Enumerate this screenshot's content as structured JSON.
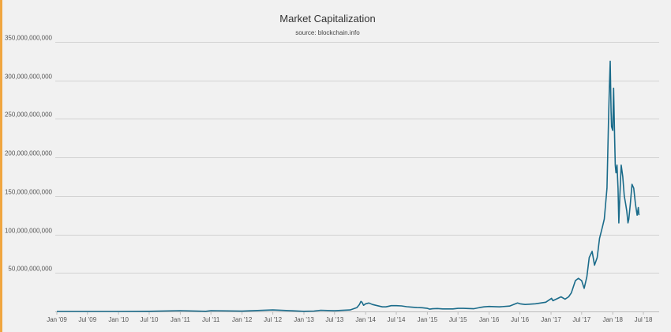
{
  "chart_data": {
    "type": "line",
    "title": "Market Capitalization",
    "subtitle": "source: blockchain.info",
    "xlabel": "",
    "ylabel": "",
    "x_range": [
      "2009-01-01",
      "2018-07-01"
    ],
    "ylim": [
      0,
      350000000000
    ],
    "y_ticks": [
      50000000000,
      100000000000,
      150000000000,
      200000000000,
      250000000000,
      300000000000,
      350000000000
    ],
    "y_tick_labels": [
      "50,000,000,000",
      "100,000,000,000",
      "150,000,000,000",
      "200,000,000,000",
      "250,000,000,000",
      "300,000,000,000",
      "350,000,000,000"
    ],
    "x_tick_labels": [
      "Jan '09",
      "Jul '09",
      "Jan '10",
      "Jul '10",
      "Jan '11",
      "Jul '11",
      "Jan '12",
      "Jul '12",
      "Jan '13",
      "Jul '13",
      "Jan '14",
      "Jul '14",
      "Jan '15",
      "Jul '15",
      "Jan '16",
      "Jul '16",
      "Jan '17",
      "Jul '17",
      "Jan '18",
      "Jul '18"
    ],
    "grid": true,
    "legend": "none",
    "line_color": "#1a6b8a",
    "accent_color": "#f0a640",
    "series": [
      {
        "x": [
          "2009-01-01",
          "2010-01-01",
          "2010-07-01",
          "2011-01-01",
          "2011-06-01",
          "2011-07-01",
          "2012-01-01",
          "2012-07-01",
          "2013-01-01",
          "2013-03-01",
          "2013-04-10",
          "2013-07-01",
          "2013-10-01",
          "2013-11-10",
          "2013-11-25",
          "2013-12-04",
          "2013-12-10",
          "2013-12-20",
          "2014-01-01",
          "2014-01-20",
          "2014-02-10",
          "2014-03-01",
          "2014-04-10",
          "2014-05-01",
          "2014-06-01",
          "2014-07-01",
          "2014-08-01",
          "2014-09-01",
          "2014-10-01",
          "2014-11-01",
          "2014-12-01",
          "2015-01-01",
          "2015-01-15",
          "2015-02-01",
          "2015-03-01",
          "2015-04-01",
          "2015-06-01",
          "2015-07-01",
          "2015-08-01",
          "2015-10-01",
          "2015-11-05",
          "2015-12-01",
          "2016-01-01",
          "2016-03-01",
          "2016-05-01",
          "2016-06-17",
          "2016-07-01",
          "2016-08-01",
          "2016-10-01",
          "2016-12-01",
          "2017-01-04",
          "2017-01-12",
          "2017-02-01",
          "2017-03-01",
          "2017-03-25",
          "2017-04-15",
          "2017-05-01",
          "2017-05-25",
          "2017-06-12",
          "2017-07-01",
          "2017-07-16",
          "2017-08-01",
          "2017-08-15",
          "2017-09-01",
          "2017-09-15",
          "2017-10-01",
          "2017-10-15",
          "2017-11-01",
          "2017-11-12",
          "2017-11-28",
          "2017-12-07",
          "2017-12-12",
          "2017-12-17",
          "2017-12-22",
          "2017-12-25",
          "2018-01-01",
          "2018-01-06",
          "2018-01-12",
          "2018-01-16",
          "2018-01-20",
          "2018-01-26",
          "2018-02-01",
          "2018-02-06",
          "2018-02-12",
          "2018-02-20",
          "2018-03-01",
          "2018-03-10",
          "2018-03-18",
          "2018-03-25",
          "2018-04-01",
          "2018-04-06",
          "2018-04-15",
          "2018-04-25",
          "2018-05-05",
          "2018-05-15",
          "2018-05-25",
          "2018-06-01",
          "2018-06-05"
        ],
        "values": [
          0,
          0,
          200000000,
          1000000000,
          200000000,
          1000000000,
          400000000,
          2000000000,
          200000000,
          500000000,
          1500000000,
          900000000,
          2000000000,
          5000000000,
          9000000000,
          13000000000,
          12000000000,
          8000000000,
          10000000000,
          11000000000,
          9000000000,
          8000000000,
          6000000000,
          6000000000,
          7500000000,
          7500000000,
          7200000000,
          6200000000,
          5500000000,
          5000000000,
          4800000000,
          4000000000,
          3000000000,
          3500000000,
          3800000000,
          3300000000,
          3300000000,
          4000000000,
          4000000000,
          3500000000,
          5000000000,
          6000000000,
          6500000000,
          6000000000,
          7000000000,
          11000000000,
          10000000000,
          9000000000,
          10000000000,
          12000000000,
          17000000000,
          14000000000,
          16000000000,
          19000000000,
          16000000000,
          19000000000,
          24000000000,
          40000000000,
          43000000000,
          40000000000,
          30000000000,
          45000000000,
          70000000000,
          78000000000,
          60000000000,
          70000000000,
          95000000000,
          110000000000,
          120000000000,
          160000000000,
          250000000000,
          290000000000,
          325000000000,
          260000000000,
          240000000000,
          235000000000,
          290000000000,
          225000000000,
          190000000000,
          180000000000,
          190000000000,
          160000000000,
          115000000000,
          150000000000,
          190000000000,
          175000000000,
          150000000000,
          140000000000,
          130000000000,
          115000000000,
          120000000000,
          140000000000,
          165000000000,
          160000000000,
          140000000000,
          125000000000,
          135000000000,
          125000000000
        ]
      }
    ]
  }
}
